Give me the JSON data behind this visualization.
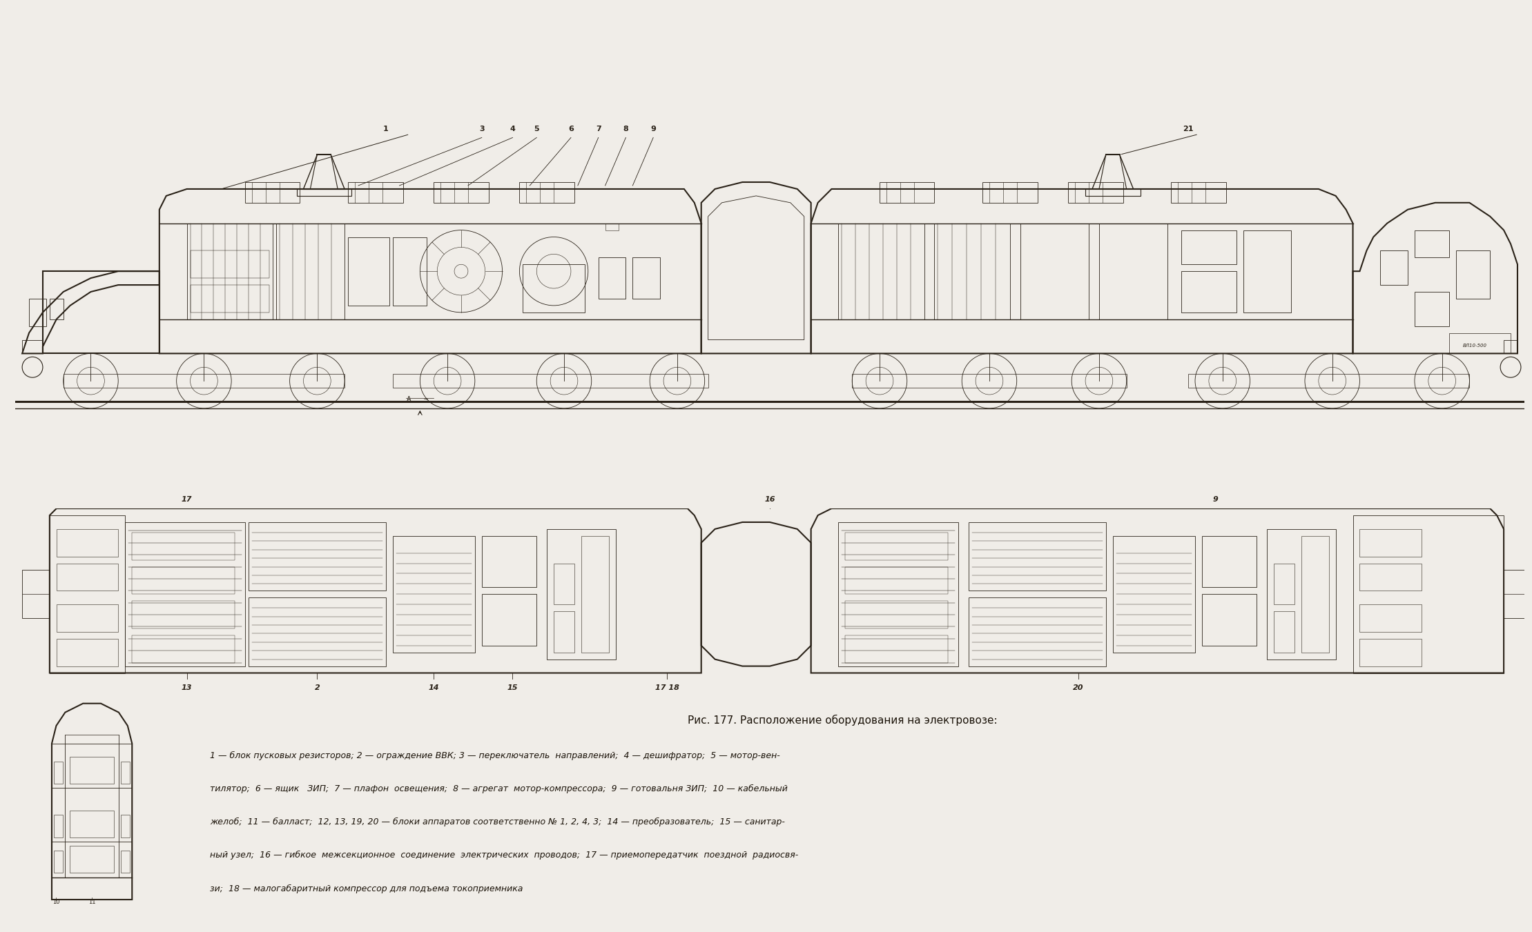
{
  "title": "Рис. 177. Расположение оборудования на электровозе:",
  "caption_lines": [
    "1 — блок пусковых резисторов; 2 — ограждение ВВК; 3 — переключатель  направлений;  4 — дешифратор;  5 — мотор-вен-",
    "тилятор;  6 — ящик   ЗИП;  7 — плафон  освещения;  8 — агрегат  мотор-компрессора;  9 — готовальня ЗИП;  10 — кабельный",
    "желоб;  11 — балласт;  12, 13, 19, 20 — блоки аппаратов соответственно № 1, 2, 4, 3;  14 — преобразователь;  15 — санитар-",
    "ный узел;  16 — гибкое  межсекционное  соединение  электрических  проводов;  17 — приемопередатчик  поездной  радиосвя-",
    "зи;  18 — малогабаритный компрессор для подъема токоприемника"
  ],
  "bg_color": "#f0ede8",
  "line_color": "#2a2218",
  "text_color": "#1a1208",
  "label_fontsize": 9,
  "caption_fontsize": 9,
  "title_fontsize": 11
}
